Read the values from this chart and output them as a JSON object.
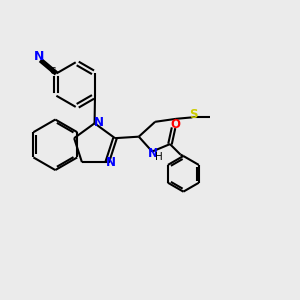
{
  "bg_color": "#ebebeb",
  "bond_color": "#000000",
  "N_color": "#0000ff",
  "O_color": "#ff0000",
  "S_color": "#cccc00",
  "linewidth": 1.5,
  "figsize": [
    3.0,
    3.0
  ],
  "dpi": 100,
  "xlim": [
    0,
    10
  ],
  "ylim": [
    0,
    10
  ]
}
